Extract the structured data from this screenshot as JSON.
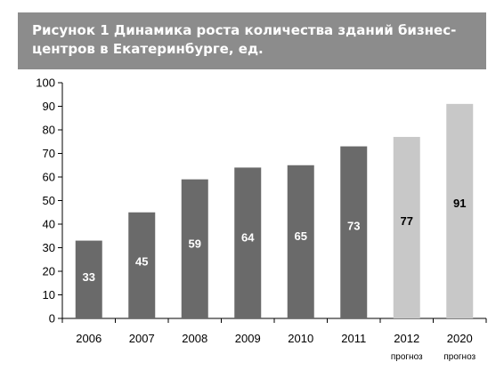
{
  "chart_data": {
    "type": "bar",
    "title": "Рисунок 1 Динамика роста количества зданий бизнес-центров в Екатеринбурге, ед.",
    "categories": [
      "2006",
      "2007",
      "2008",
      "2009",
      "2010",
      "2011",
      "2012",
      "2020"
    ],
    "category_notes": [
      "",
      "",
      "",
      "",
      "",
      "",
      "прогноз",
      "прогноз"
    ],
    "values": [
      33,
      45,
      59,
      64,
      65,
      73,
      77,
      91
    ],
    "forecast": [
      false,
      false,
      false,
      false,
      false,
      false,
      true,
      true
    ],
    "ylim": [
      0,
      100
    ],
    "ytick_step": 10,
    "xlabel": "",
    "ylabel": "",
    "grid": false,
    "colors": {
      "actual_bar": "#6a6a6a",
      "forecast_bar": "#c8c8c8",
      "actual_label": "#ffffff",
      "forecast_label": "#000000"
    }
  }
}
